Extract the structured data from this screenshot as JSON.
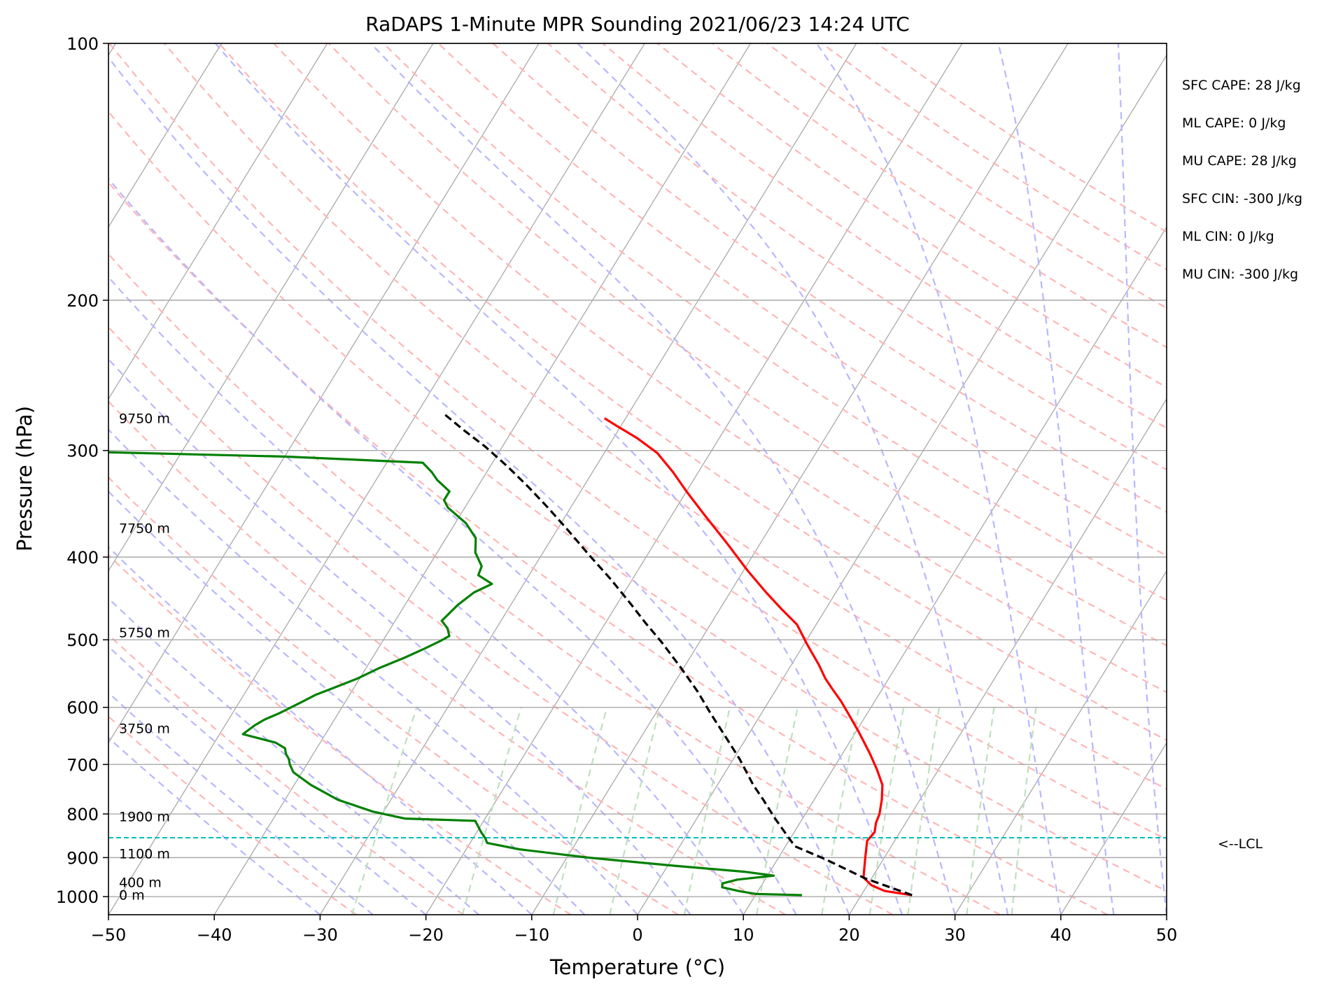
{
  "chart_data": {
    "type": "line",
    "subtype": "skew-t log-p diagram",
    "title": "RaDAPS 1-Minute MPR Sounding 2021/06/23 14:24 UTC",
    "xlabel": "Temperature (°C)",
    "ylabel": "Pressure (hPa)",
    "xlim": [
      -50,
      50
    ],
    "ylim": [
      1050,
      100
    ],
    "y_scale": "log",
    "grid": true,
    "x_ticks": [
      -50,
      -40,
      -30,
      -20,
      -10,
      0,
      10,
      20,
      30,
      40,
      50
    ],
    "x_tick_labels": [
      "−50",
      "−40",
      "−30",
      "−20",
      "−10",
      "0",
      "10",
      "20",
      "30",
      "40",
      "50"
    ],
    "y_ticks": [
      100,
      200,
      300,
      400,
      500,
      600,
      700,
      800,
      900,
      1000
    ],
    "y_tick_labels": [
      "100",
      "200",
      "300",
      "400",
      "500",
      "600",
      "700",
      "800",
      "900",
      "1000"
    ],
    "height_labels": [
      {
        "text": "9750 m",
        "p": 275
      },
      {
        "text": "7750 m",
        "p": 370
      },
      {
        "text": "5750 m",
        "p": 490
      },
      {
        "text": "3750 m",
        "p": 635
      },
      {
        "text": "1900 m",
        "p": 805
      },
      {
        "text": "1100 m",
        "p": 890
      },
      {
        "text": "400 m",
        "p": 962
      },
      {
        "text": "0 m",
        "p": 995
      }
    ],
    "indices": [
      "SFC CAPE: 28 J/kg",
      "ML CAPE: 0 J/kg",
      "MU CAPE: 28 J/kg",
      "SFC CIN: -300 J/kg",
      "ML CIN: 0 J/kg",
      "MU CIN: -300 J/kg"
    ],
    "lcl": {
      "label": "<--LCL",
      "p": 853
    },
    "series": [
      {
        "role": "temperature",
        "color": "#ff0000",
        "points": [
          [
            24.8,
            996
          ],
          [
            22,
            985
          ],
          [
            20.4,
            970
          ],
          [
            19.2,
            950
          ],
          [
            18.8,
            930
          ],
          [
            18.2,
            900
          ],
          [
            17.8,
            880
          ],
          [
            17.4,
            860
          ],
          [
            17.6,
            840
          ],
          [
            17.2,
            820
          ],
          [
            17,
            800
          ],
          [
            16.4,
            770
          ],
          [
            15.6,
            740
          ],
          [
            14.2,
            710
          ],
          [
            12.6,
            680
          ],
          [
            10.2,
            640
          ],
          [
            8.2,
            610
          ],
          [
            6.8,
            590
          ],
          [
            5.2,
            570
          ],
          [
            4,
            555
          ],
          [
            2.6,
            535
          ],
          [
            0.2,
            505
          ],
          [
            -1.8,
            480
          ],
          [
            -4.2,
            460
          ],
          [
            -6.6,
            440
          ],
          [
            -9.6,
            415
          ],
          [
            -13.2,
            385
          ],
          [
            -17.2,
            355
          ],
          [
            -20,
            335
          ],
          [
            -22.4,
            318
          ],
          [
            -25,
            302
          ],
          [
            -27.8,
            290
          ],
          [
            -30.6,
            280
          ],
          [
            -32,
            275
          ]
        ]
      },
      {
        "role": "dewpoint",
        "color": "#008000",
        "points": [
          [
            14.4,
            996
          ],
          [
            10,
            993
          ],
          [
            8.2,
            985
          ],
          [
            6.4,
            975
          ],
          [
            6.2,
            965
          ],
          [
            7.4,
            955
          ],
          [
            10.6,
            945
          ],
          [
            7.6,
            935
          ],
          [
            0.6,
            920
          ],
          [
            -8,
            900
          ],
          [
            -15,
            880
          ],
          [
            -18.4,
            865
          ],
          [
            -18.8,
            855
          ],
          [
            -19.6,
            840
          ],
          [
            -20.8,
            815
          ],
          [
            -27.6,
            810
          ],
          [
            -31,
            795
          ],
          [
            -35,
            770
          ],
          [
            -38.4,
            740
          ],
          [
            -40.8,
            715
          ],
          [
            -41.6,
            700
          ],
          [
            -42,
            690
          ],
          [
            -42.6,
            680
          ],
          [
            -43,
            670
          ],
          [
            -44.2,
            660
          ],
          [
            -47.8,
            645
          ],
          [
            -47.2,
            630
          ],
          [
            -46.6,
            620
          ],
          [
            -45.6,
            610
          ],
          [
            -44.8,
            600
          ],
          [
            -44,
            590
          ],
          [
            -43.2,
            580
          ],
          [
            -42,
            570
          ],
          [
            -40.2,
            555
          ],
          [
            -38.8,
            540
          ],
          [
            -37,
            525
          ],
          [
            -35.6,
            512
          ],
          [
            -34.6,
            502
          ],
          [
            -34,
            495
          ],
          [
            -34.6,
            485
          ],
          [
            -35.6,
            475
          ],
          [
            -35,
            455
          ],
          [
            -34.2,
            440
          ],
          [
            -33,
            430
          ],
          [
            -34.8,
            420
          ],
          [
            -35,
            410
          ],
          [
            -36.4,
            395
          ],
          [
            -37.2,
            380
          ],
          [
            -39,
            365
          ],
          [
            -41.6,
            350
          ],
          [
            -42.4,
            343
          ],
          [
            -42.4,
            335
          ],
          [
            -44.2,
            325
          ],
          [
            -45.2,
            318
          ],
          [
            -46.6,
            310
          ],
          [
            -60,
            305
          ],
          [
            -84,
            300
          ],
          [
            -95,
            300
          ]
        ]
      },
      {
        "role": "parcel-profile",
        "color": "#000000",
        "style": "dashed",
        "points": [
          [
            24.8,
            996
          ],
          [
            19.4,
            952
          ],
          [
            14.4,
            903
          ],
          [
            10.9,
            873
          ],
          [
            9.8,
            853
          ],
          [
            7.4,
            810
          ],
          [
            5.2,
            770
          ],
          [
            3.4,
            740
          ],
          [
            0.6,
            690
          ],
          [
            -2,
            650
          ],
          [
            -4.8,
            610
          ],
          [
            -7.3,
            575
          ],
          [
            -10.2,
            540
          ],
          [
            -13.6,
            503
          ],
          [
            -16.2,
            478
          ],
          [
            -18.6,
            455
          ],
          [
            -22,
            425
          ],
          [
            -25.6,
            397
          ],
          [
            -28.8,
            373
          ],
          [
            -32,
            351
          ],
          [
            -35.2,
            331
          ],
          [
            -38.4,
            313
          ],
          [
            -41.6,
            297
          ],
          [
            -44.6,
            284
          ],
          [
            -47.6,
            271
          ]
        ]
      }
    ],
    "reference_lines": [
      {
        "name": "isotherms",
        "color": "#a9a9a9",
        "style": "solid"
      },
      {
        "name": "dry adiabats",
        "color": "#ffb6b6",
        "style": "dashed"
      },
      {
        "name": "moist adiabats",
        "color": "#b7b7ff",
        "style": "dashed"
      },
      {
        "name": "mixing ratio lines",
        "color": "#bfe0bf",
        "style": "dashed"
      },
      {
        "name": "lcl line",
        "color": "#00bfbf",
        "style": "dashed"
      }
    ]
  }
}
